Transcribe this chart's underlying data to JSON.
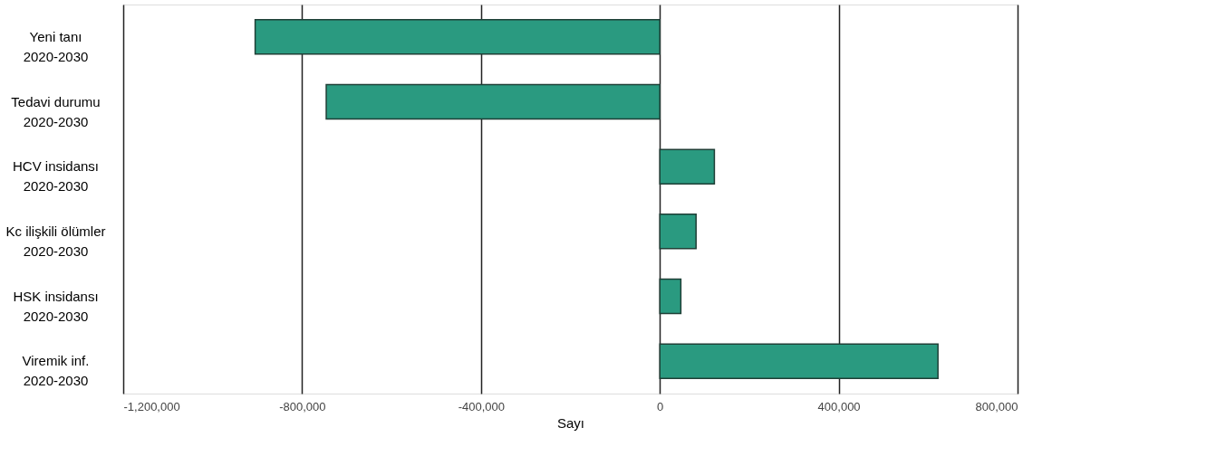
{
  "chart_data": {
    "type": "bar",
    "orientation": "horizontal",
    "xlabel": "Sayı",
    "categories": [
      "Yeni tanı\n2020-2030",
      "Tedavi durumu\n2020-2030",
      "HCV insidansı\n2020-2030",
      "Kc ilişkili ölümler\n2020-2030",
      "HSK insidansı\n2020-2030",
      "Viremik inf.\n2020-2030"
    ],
    "values": [
      -905000,
      -746000,
      122000,
      81000,
      47000,
      622000
    ],
    "color": "#2a9a80",
    "xlim": [
      -1200000,
      800000
    ],
    "xticks": [
      {
        "value": -1200000,
        "label": "-1,200,000"
      },
      {
        "value": -800000,
        "label": "-800,000"
      },
      {
        "value": -400000,
        "label": "-400,000"
      },
      0,
      {
        "value": 400000,
        "label": "400,000"
      },
      {
        "value": 800000,
        "label": "800,000"
      }
    ],
    "grid": "x"
  }
}
